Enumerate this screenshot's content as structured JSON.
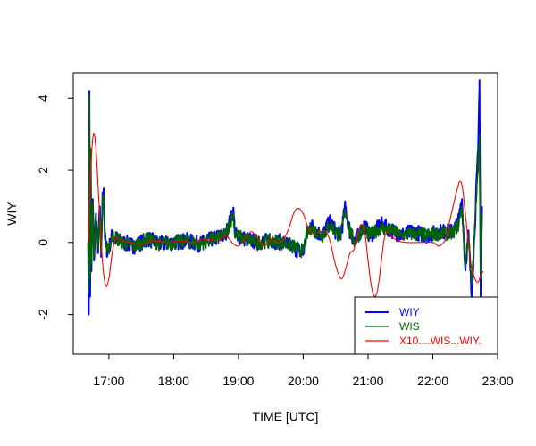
{
  "chart_data": {
    "type": "line",
    "title": "",
    "xlabel": "TIME [UTC]",
    "ylabel": "WIY",
    "xlim": [
      16.45,
      23.0
    ],
    "ylim": [
      -3.1,
      4.7
    ],
    "x_ticks": [
      {
        "value": 17,
        "label": "17:00"
      },
      {
        "value": 18,
        "label": "18:00"
      },
      {
        "value": 19,
        "label": "19:00"
      },
      {
        "value": 20,
        "label": "20:00"
      },
      {
        "value": 21,
        "label": "21:00"
      },
      {
        "value": 22,
        "label": "22:00"
      },
      {
        "value": 23,
        "label": "23:00"
      }
    ],
    "y_ticks": [
      {
        "value": -2,
        "label": "-2"
      },
      {
        "value": 0,
        "label": "0"
      },
      {
        "value": 2,
        "label": "2"
      },
      {
        "value": 4,
        "label": "4"
      }
    ],
    "grid": false,
    "legend_position": "bottom-right",
    "series": [
      {
        "name": "WIY",
        "color": "#0000ff",
        "noise": 0.22,
        "points": [
          [
            16.68,
            0
          ],
          [
            16.69,
            -2.0
          ],
          [
            16.7,
            4.2
          ],
          [
            16.71,
            -1.5
          ],
          [
            16.72,
            2.5
          ],
          [
            16.73,
            -0.8
          ],
          [
            16.75,
            1.2
          ],
          [
            16.77,
            -0.5
          ],
          [
            16.8,
            0.8
          ],
          [
            16.83,
            -0.3
          ],
          [
            16.86,
            1.0
          ],
          [
            16.88,
            -0.4
          ],
          [
            16.9,
            1.2
          ],
          [
            16.92,
            1.5
          ],
          [
            16.94,
            0.1
          ],
          [
            16.98,
            -0.3
          ],
          [
            17.05,
            0.2
          ],
          [
            17.2,
            0.0
          ],
          [
            17.4,
            -0.1
          ],
          [
            17.6,
            0.1
          ],
          [
            17.8,
            -0.05
          ],
          [
            18.0,
            0.0
          ],
          [
            18.2,
            0.05
          ],
          [
            18.4,
            -0.05
          ],
          [
            18.6,
            0.1
          ],
          [
            18.8,
            0.2
          ],
          [
            18.92,
            0.9
          ],
          [
            18.95,
            0.2
          ],
          [
            19.1,
            0.1
          ],
          [
            19.3,
            0.0
          ],
          [
            19.5,
            0.05
          ],
          [
            19.7,
            0.0
          ],
          [
            19.9,
            -0.2
          ],
          [
            20.0,
            -0.3
          ],
          [
            20.05,
            0.2
          ],
          [
            20.12,
            0.5
          ],
          [
            20.2,
            0.3
          ],
          [
            20.3,
            0.2
          ],
          [
            20.42,
            0.6
          ],
          [
            20.5,
            0.3
          ],
          [
            20.58,
            0.2
          ],
          [
            20.65,
            1.0
          ],
          [
            20.72,
            0.3
          ],
          [
            20.8,
            0.0
          ],
          [
            20.88,
            0.3
          ],
          [
            20.95,
            0.5
          ],
          [
            21.02,
            0.2
          ],
          [
            21.1,
            0.3
          ],
          [
            21.2,
            0.5
          ],
          [
            21.3,
            0.4
          ],
          [
            21.4,
            0.3
          ],
          [
            21.5,
            0.2
          ],
          [
            21.7,
            0.3
          ],
          [
            21.9,
            0.2
          ],
          [
            22.1,
            0.3
          ],
          [
            22.3,
            0.3
          ],
          [
            22.4,
            0.6
          ],
          [
            22.45,
            1.2
          ],
          [
            22.5,
            -0.7
          ],
          [
            22.55,
            0.2
          ],
          [
            22.6,
            -1.5
          ],
          [
            22.65,
            0.5
          ],
          [
            22.68,
            1.8
          ],
          [
            22.7,
            2.5
          ],
          [
            22.72,
            4.5
          ],
          [
            22.74,
            -1.5
          ],
          [
            22.76,
            1.0
          ]
        ]
      },
      {
        "name": "WIS",
        "color": "#006400",
        "noise": 0.2,
        "points": [
          [
            16.68,
            0
          ],
          [
            16.69,
            -1.4
          ],
          [
            16.7,
            4.1
          ],
          [
            16.71,
            -1.0
          ],
          [
            16.72,
            2.6
          ],
          [
            16.73,
            -0.6
          ],
          [
            16.75,
            1.1
          ],
          [
            16.77,
            -0.4
          ],
          [
            16.8,
            0.7
          ],
          [
            16.83,
            -0.2
          ],
          [
            16.86,
            0.9
          ],
          [
            16.88,
            -0.3
          ],
          [
            16.9,
            1.1
          ],
          [
            16.92,
            1.3
          ],
          [
            16.94,
            0.1
          ],
          [
            16.98,
            -0.3
          ],
          [
            17.05,
            0.2
          ],
          [
            17.2,
            0.0
          ],
          [
            17.4,
            -0.1
          ],
          [
            17.6,
            0.1
          ],
          [
            17.8,
            -0.05
          ],
          [
            18.0,
            0.0
          ],
          [
            18.2,
            0.05
          ],
          [
            18.4,
            -0.05
          ],
          [
            18.6,
            0.1
          ],
          [
            18.8,
            0.2
          ],
          [
            18.92,
            0.8
          ],
          [
            18.95,
            0.2
          ],
          [
            19.1,
            0.1
          ],
          [
            19.3,
            0.0
          ],
          [
            19.5,
            0.05
          ],
          [
            19.7,
            0.0
          ],
          [
            19.9,
            -0.15
          ],
          [
            20.0,
            -0.25
          ],
          [
            20.05,
            0.2
          ],
          [
            20.12,
            0.4
          ],
          [
            20.2,
            0.3
          ],
          [
            20.3,
            0.2
          ],
          [
            20.42,
            0.5
          ],
          [
            20.5,
            0.3
          ],
          [
            20.58,
            0.2
          ],
          [
            20.65,
            0.9
          ],
          [
            20.72,
            0.3
          ],
          [
            20.8,
            0.0
          ],
          [
            20.88,
            0.3
          ],
          [
            20.95,
            0.4
          ],
          [
            21.02,
            0.2
          ],
          [
            21.1,
            0.3
          ],
          [
            21.2,
            0.4
          ],
          [
            21.3,
            0.35
          ],
          [
            21.4,
            0.3
          ],
          [
            21.5,
            0.2
          ],
          [
            21.7,
            0.25
          ],
          [
            21.9,
            0.2
          ],
          [
            22.1,
            0.25
          ],
          [
            22.3,
            0.25
          ],
          [
            22.4,
            0.5
          ],
          [
            22.45,
            1.0
          ],
          [
            22.5,
            -0.6
          ],
          [
            22.55,
            0.2
          ],
          [
            22.6,
            -1.2
          ],
          [
            22.65,
            0.4
          ],
          [
            22.68,
            1.6
          ],
          [
            22.7,
            2.2
          ],
          [
            22.72,
            3.0
          ],
          [
            22.74,
            -1.0
          ],
          [
            22.76,
            0.8
          ]
        ]
      },
      {
        "name": "X10....WIS...WIY.",
        "color": "#ff0000",
        "noise": 0,
        "points": [
          [
            16.68,
            0.0
          ],
          [
            16.72,
            2.0
          ],
          [
            16.76,
            3.0
          ],
          [
            16.8,
            2.6
          ],
          [
            16.85,
            1.0
          ],
          [
            16.9,
            -0.5
          ],
          [
            16.95,
            -1.2
          ],
          [
            17.0,
            -1.0
          ],
          [
            17.05,
            -0.3
          ],
          [
            17.1,
            0.1
          ],
          [
            17.15,
            0.1
          ],
          [
            17.3,
            0.0
          ],
          [
            17.5,
            -0.05
          ],
          [
            17.7,
            0.05
          ],
          [
            17.9,
            0.0
          ],
          [
            18.1,
            0.05
          ],
          [
            18.3,
            0.0
          ],
          [
            18.5,
            0.1
          ],
          [
            18.7,
            0.05
          ],
          [
            18.8,
            0.2
          ],
          [
            18.9,
            0.0
          ],
          [
            19.0,
            -0.1
          ],
          [
            19.1,
            0.1
          ],
          [
            19.2,
            0.3
          ],
          [
            19.3,
            0.1
          ],
          [
            19.4,
            -0.1
          ],
          [
            19.5,
            0.1
          ],
          [
            19.6,
            0.0
          ],
          [
            19.7,
            0.1
          ],
          [
            19.78,
            0.4
          ],
          [
            19.85,
            0.8
          ],
          [
            19.92,
            0.95
          ],
          [
            20.0,
            0.8
          ],
          [
            20.08,
            0.4
          ],
          [
            20.15,
            0.25
          ],
          [
            20.25,
            0.3
          ],
          [
            20.35,
            0.3
          ],
          [
            20.42,
            0.0
          ],
          [
            20.48,
            -0.5
          ],
          [
            20.55,
            -0.9
          ],
          [
            20.6,
            -1.0
          ],
          [
            20.66,
            -0.7
          ],
          [
            20.72,
            -0.3
          ],
          [
            20.78,
            -0.2
          ],
          [
            20.85,
            0.3
          ],
          [
            20.9,
            0.5
          ],
          [
            20.95,
            0.3
          ],
          [
            21.0,
            -0.5
          ],
          [
            21.05,
            -1.2
          ],
          [
            21.1,
            -1.5
          ],
          [
            21.15,
            -1.3
          ],
          [
            21.2,
            -0.6
          ],
          [
            21.25,
            0.1
          ],
          [
            21.3,
            0.3
          ],
          [
            21.35,
            0.2
          ],
          [
            21.45,
            0.05
          ],
          [
            21.6,
            0.0
          ],
          [
            21.8,
            0.0
          ],
          [
            22.0,
            0.0
          ],
          [
            22.1,
            -0.1
          ],
          [
            22.2,
            0.1
          ],
          [
            22.25,
            0.5
          ],
          [
            22.3,
            0.9
          ],
          [
            22.38,
            1.5
          ],
          [
            22.42,
            1.7
          ],
          [
            22.46,
            1.5
          ],
          [
            22.52,
            0.5
          ],
          [
            22.58,
            -0.5
          ],
          [
            22.65,
            -1.0
          ],
          [
            22.7,
            -1.1
          ],
          [
            22.74,
            -0.9
          ],
          [
            22.78,
            -0.8
          ]
        ]
      }
    ]
  }
}
